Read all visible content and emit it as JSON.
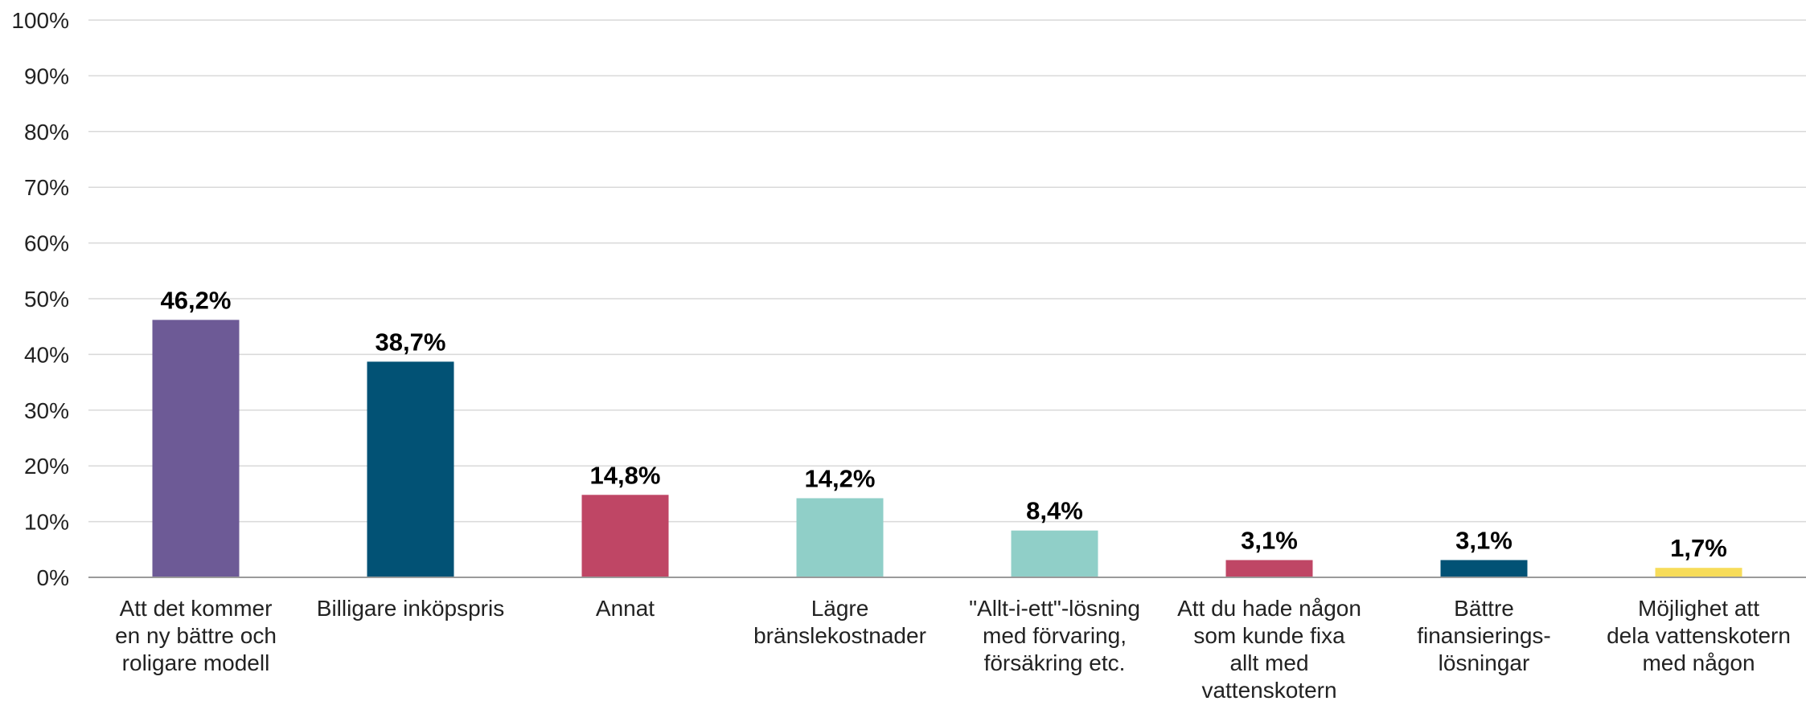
{
  "chart_data": {
    "type": "bar",
    "categories": [
      [
        "Att det kommer",
        "en ny bättre och",
        "roligare modell"
      ],
      [
        "Billigare inköpspris"
      ],
      [
        "Annat"
      ],
      [
        "Lägre",
        "bränslekostnader"
      ],
      [
        "\"Allt-i-ett\"-lösning",
        "med förvaring,",
        "försäkring etc."
      ],
      [
        "Att du hade någon",
        "som kunde fixa",
        "allt med",
        "vattenskotern"
      ],
      [
        "Bättre",
        "finansierings-",
        "lösningar"
      ],
      [
        "Möjlighet att",
        "dela vattenskotern",
        "med någon"
      ]
    ],
    "values": [
      46.2,
      38.7,
      14.8,
      14.2,
      8.4,
      3.1,
      3.1,
      1.7
    ],
    "value_labels": [
      "46,2%",
      "38,7%",
      "14,8%",
      "14,2%",
      "8,4%",
      "3,1%",
      "3,1%",
      "1,7%"
    ],
    "colors": [
      "#6d5a96",
      "#025275",
      "#bf4665",
      "#90cfc8",
      "#90cfc8",
      "#bf4665",
      "#025275",
      "#f7dc5a"
    ],
    "ylim": [
      0,
      100
    ],
    "yticks": [
      "0%",
      "10%",
      "20%",
      "30%",
      "40%",
      "50%",
      "60%",
      "70%",
      "80%",
      "90%",
      "100%"
    ],
    "grid": true,
    "title": "",
    "xlabel": "",
    "ylabel": ""
  }
}
